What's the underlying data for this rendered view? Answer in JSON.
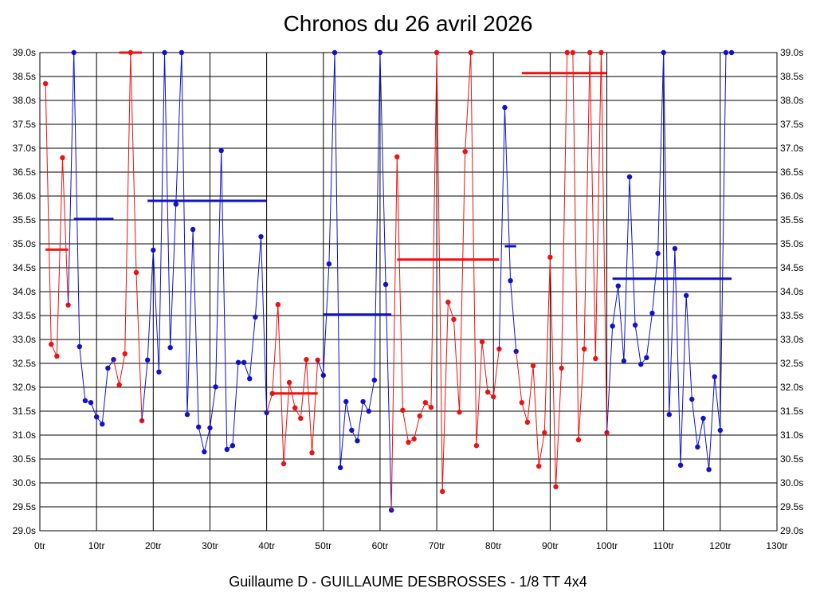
{
  "chart_data": {
    "type": "line",
    "title": "Chronos du 26 avril 2026",
    "subtitle": "Guillaume D - GUILLAUME DESBROSSES - 1/8 TT 4x4",
    "xlabel": "",
    "ylabel": "",
    "x_range": [
      0,
      130
    ],
    "x_ticks": [
      0,
      10,
      20,
      30,
      40,
      50,
      60,
      70,
      80,
      90,
      100,
      110,
      120,
      130
    ],
    "x_tick_labels": [
      "0tr",
      "10tr",
      "20tr",
      "30tr",
      "40tr",
      "50tr",
      "60tr",
      "70tr",
      "80tr",
      "90tr",
      "100tr",
      "110tr",
      "120tr",
      "130tr"
    ],
    "y_range": [
      29.0,
      39.0
    ],
    "y_ticks": [
      29.0,
      29.5,
      30.0,
      30.5,
      31.0,
      31.5,
      32.0,
      32.5,
      33.0,
      33.5,
      34.0,
      34.5,
      35.0,
      35.5,
      36.0,
      36.5,
      37.0,
      37.5,
      38.0,
      38.5,
      39.0
    ],
    "y_tick_labels": [
      "29.0s",
      "29.5s",
      "30.0s",
      "30.5s",
      "31.0s",
      "31.5s",
      "32.0s",
      "32.5s",
      "33.0s",
      "33.5s",
      "34.0s",
      "34.5s",
      "35.0s",
      "35.5s",
      "36.0s",
      "36.5s",
      "37.0s",
      "37.5s",
      "38.0s",
      "38.5s",
      "39.0s"
    ],
    "grid": true,
    "colors": {
      "red": "#ee1111",
      "blue": "#1111cc"
    },
    "segments": [
      {
        "color": "red",
        "x": [
          1,
          2,
          3,
          4,
          5
        ],
        "y": [
          38.35,
          32.9,
          32.65,
          36.8,
          33.72
        ],
        "avg": 34.88,
        "avg_range": [
          1,
          5
        ]
      },
      {
        "color": "blue",
        "x": [
          6,
          7,
          8,
          9,
          10,
          11,
          12,
          13
        ],
        "y": [
          39.0,
          32.85,
          31.72,
          31.68,
          31.38,
          31.23,
          32.4,
          32.58
        ],
        "avg": 35.52,
        "avg_range": [
          6,
          13
        ]
      },
      {
        "color": "red",
        "x": [
          14,
          15,
          16,
          17,
          18
        ],
        "y": [
          32.05,
          32.7,
          39.0,
          34.4,
          31.3
        ],
        "avg": 39.0,
        "avg_range": [
          14,
          18
        ]
      },
      {
        "color": "blue",
        "x": [
          19,
          20,
          21,
          22,
          23,
          24,
          25,
          26,
          27,
          28,
          29,
          30,
          31,
          32,
          33,
          34,
          35,
          36,
          37,
          38,
          39,
          40
        ],
        "y": [
          32.57,
          34.87,
          32.32,
          39.0,
          32.83,
          35.83,
          39.0,
          31.43,
          35.3,
          31.17,
          30.65,
          31.15,
          32.01,
          36.95,
          30.7,
          30.78,
          32.52,
          32.52,
          32.18,
          33.47,
          35.15,
          31.47
        ],
        "avg": 35.9,
        "avg_range": [
          19,
          40
        ]
      },
      {
        "color": "red",
        "x": [
          41,
          42,
          43,
          44,
          45,
          46,
          47,
          48,
          49
        ],
        "y": [
          31.87,
          33.73,
          30.4,
          32.1,
          31.57,
          31.35,
          32.58,
          30.63,
          32.57
        ],
        "avg": 31.87,
        "avg_range": [
          41,
          49
        ]
      },
      {
        "color": "blue",
        "x": [
          50,
          51,
          52,
          53,
          54,
          55,
          56,
          57,
          58,
          59,
          60,
          61,
          62
        ],
        "y": [
          32.25,
          34.58,
          39.0,
          30.32,
          31.7,
          31.1,
          30.88,
          31.7,
          31.5,
          32.15,
          39.0,
          34.15,
          29.43
        ],
        "avg": 33.52,
        "avg_range": [
          50,
          62
        ]
      },
      {
        "color": "red",
        "x": [
          63,
          64,
          65,
          66,
          67,
          68,
          69,
          70,
          71,
          72,
          73,
          74,
          75,
          76,
          77,
          78,
          79,
          80,
          81
        ],
        "y": [
          36.82,
          31.52,
          30.85,
          30.92,
          31.4,
          31.68,
          31.58,
          39.0,
          29.82,
          33.78,
          33.42,
          31.48,
          36.93,
          39.0,
          30.78,
          32.95,
          31.9,
          31.8,
          32.8
        ],
        "avg": 34.67,
        "avg_range": [
          63,
          81
        ]
      },
      {
        "color": "blue",
        "x": [
          82,
          83,
          84
        ],
        "y": [
          37.85,
          34.23,
          32.75
        ],
        "avg": 34.95,
        "avg_range": [
          82,
          84
        ]
      },
      {
        "color": "red",
        "x": [
          85,
          86,
          87,
          88,
          89,
          90,
          91,
          92,
          93,
          94,
          95,
          96,
          97,
          98,
          99,
          100
        ],
        "y": [
          31.68,
          31.27,
          32.45,
          30.35,
          31.05,
          34.72,
          29.92,
          32.4,
          39.0,
          39.0,
          30.9,
          32.8,
          39.0,
          32.6,
          39.0,
          31.05
        ],
        "avg": 38.57,
        "avg_range": [
          85,
          100
        ]
      },
      {
        "color": "blue",
        "x": [
          101,
          102,
          103,
          104,
          105,
          106,
          107,
          108,
          109,
          110,
          111,
          112,
          113,
          114,
          115,
          116,
          117,
          118,
          119,
          120,
          121,
          122
        ],
        "y": [
          33.28,
          34.12,
          32.55,
          36.4,
          33.3,
          32.48,
          32.62,
          33.55,
          34.8,
          39.0,
          31.43,
          34.9,
          30.37,
          33.92,
          31.75,
          30.75,
          31.35,
          30.28,
          32.22,
          31.1,
          39.0,
          39.0
        ],
        "avg": 34.27,
        "avg_range": [
          101,
          122
        ]
      }
    ]
  }
}
